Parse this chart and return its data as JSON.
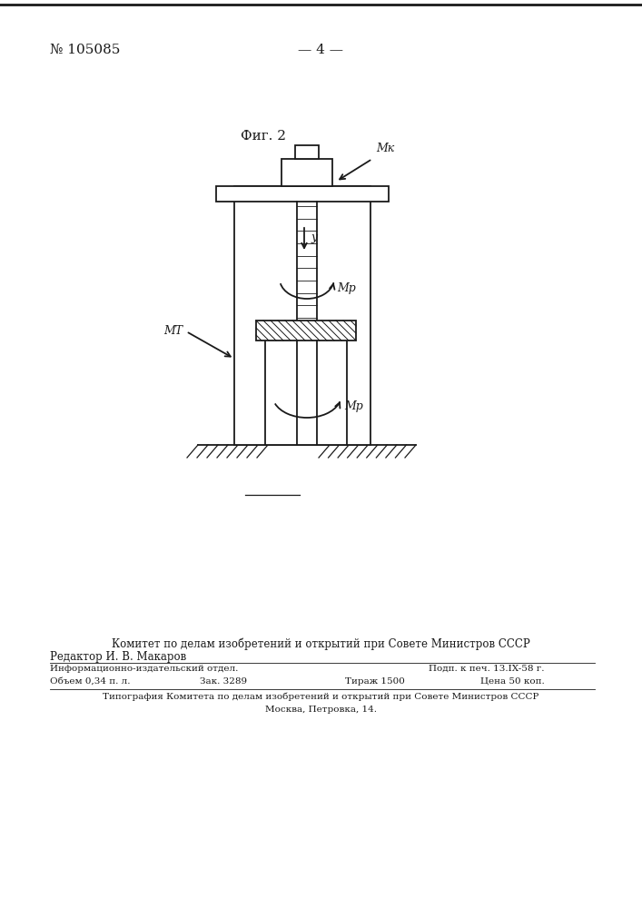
{
  "title_top_left": "№ 105085",
  "title_top_center": "— 4 —",
  "fig_label": "Фиг. 2",
  "label_MK": "Mк",
  "label_MD": "Mр",
  "label_MT": "MТ",
  "label_MP": "Mр",
  "label_u": "у",
  "bg_color": "#ffffff",
  "line_color": "#1a1a1a",
  "footer_line0": "Комитет по делам изобретений и открытий при Совете Министров СССР",
  "footer_line1": "Редактор И. В. Макаров",
  "footer_line2a": "Информационно-издательский отдел.",
  "footer_line2b": "Подп. к печ. 13.IX-58 г.",
  "footer_line3a": "Объем 0,34 п. л.",
  "footer_line3b": "Зак. 3289",
  "footer_line3c": "Тираж 1500",
  "footer_line3d": "Цена 50 коп.",
  "footer_line4": "Типография Комитета по делам изобретений и открытий при Совете Министров СССР",
  "footer_line5": "Москва, Петровка, 14."
}
